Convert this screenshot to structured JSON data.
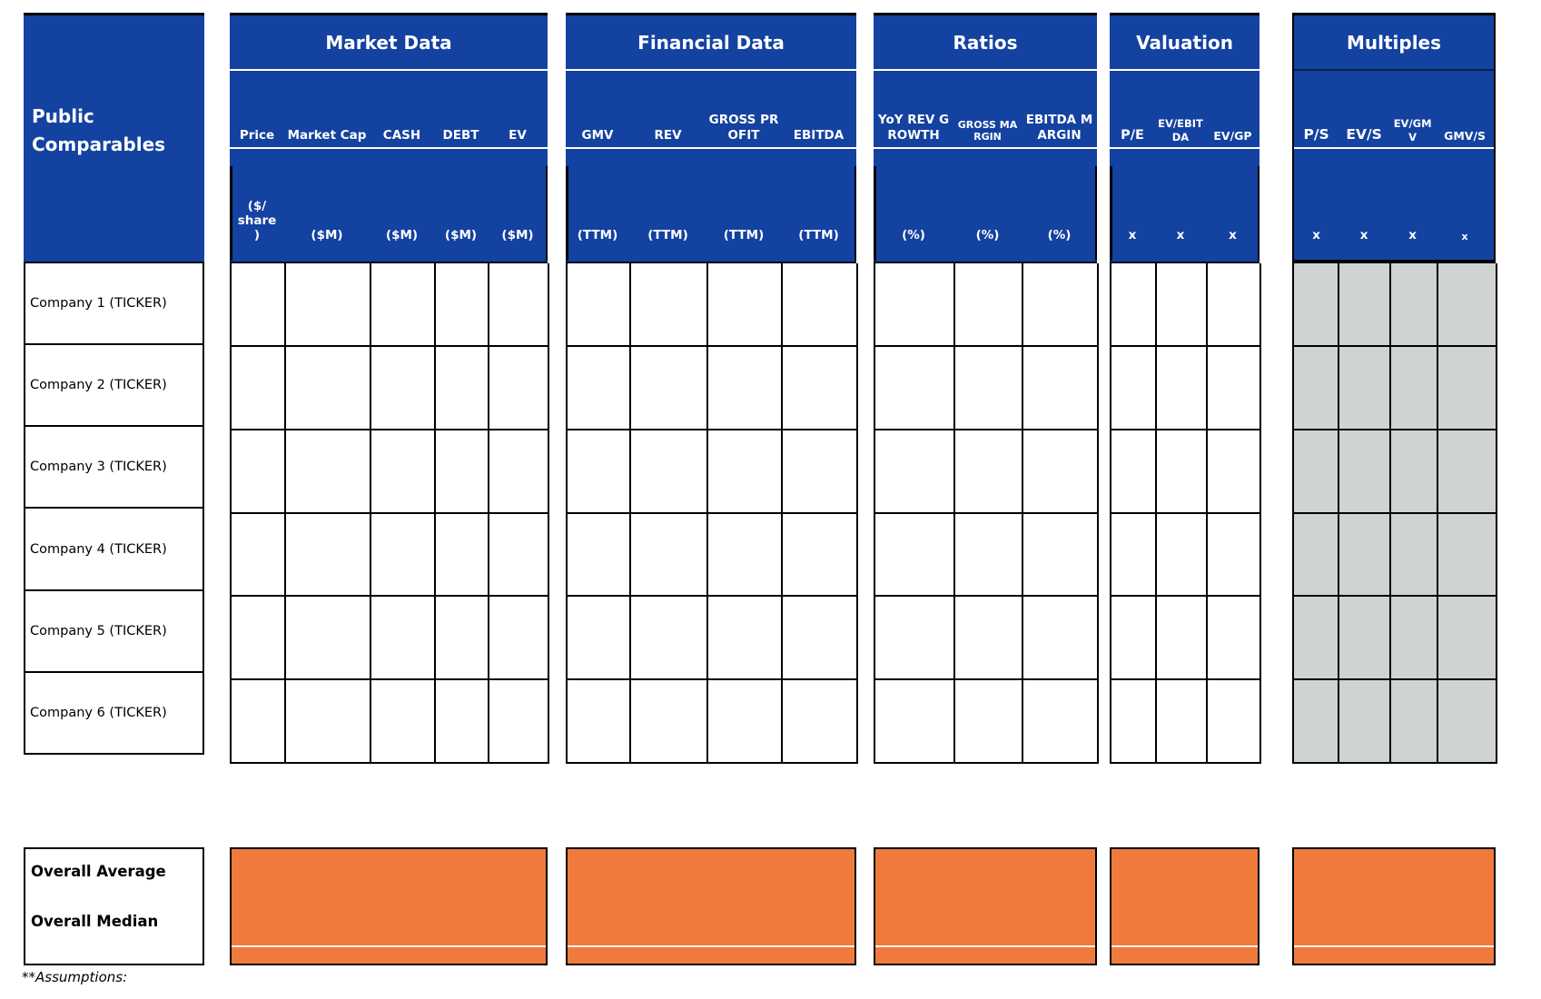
{
  "table": {
    "row_header_title": "Public Comparables",
    "groups": [
      {
        "title": "Market Data",
        "columns": [
          {
            "label": "Price",
            "unit": "($/\nshare\n)"
          },
          {
            "label": "Market Cap",
            "unit": "($M)"
          },
          {
            "label": "CASH",
            "unit": "($M)"
          },
          {
            "label": "DEBT",
            "unit": "($M)"
          },
          {
            "label": "EV",
            "unit": "($M)"
          }
        ]
      },
      {
        "title": "Financial Data",
        "columns": [
          {
            "label": "GMV",
            "unit": "(TTM)"
          },
          {
            "label": "REV",
            "unit": "(TTM)"
          },
          {
            "label": "GROSS PROFIT",
            "unit": "(TTM)"
          },
          {
            "label": "EBITDA",
            "unit": "(TTM)"
          }
        ]
      },
      {
        "title": "Ratios",
        "columns": [
          {
            "label": "YoY REV GROWTH",
            "unit": "(%)"
          },
          {
            "label": "GROSS MARGIN",
            "unit": "(%)"
          },
          {
            "label": "EBITDA MARGIN",
            "unit": "(%)"
          }
        ]
      },
      {
        "title": "Valuation",
        "columns": [
          {
            "label": "P/E",
            "unit": "x"
          },
          {
            "label": "EV/EBITDA",
            "unit": "x"
          },
          {
            "label": "EV/GP",
            "unit": "x"
          }
        ]
      },
      {
        "title": "Multiples",
        "columns": [
          {
            "label": "P/S",
            "unit": "x"
          },
          {
            "label": "EV/S",
            "unit": "x"
          },
          {
            "label": "EV/GMV",
            "unit": "x"
          },
          {
            "label": "GMV/S",
            "unit": "x"
          }
        ]
      }
    ],
    "rows": [
      {
        "label": "Company 1 (TICKER)"
      },
      {
        "label": "Company 2 (TICKER)"
      },
      {
        "label": "Company 3 (TICKER)"
      },
      {
        "label": "Company 4 (TICKER)"
      },
      {
        "label": "Company 5 (TICKER)"
      },
      {
        "label": "Company 6 (TICKER)"
      }
    ],
    "summary": {
      "labels": [
        "Overall Average",
        "Overall Median"
      ]
    },
    "footnote": "**Assumptions:"
  },
  "colors": {
    "header_blue": "#1442A0",
    "summary_orange": "#EF7A3C",
    "multiples_gray": "#D0D3D4"
  }
}
